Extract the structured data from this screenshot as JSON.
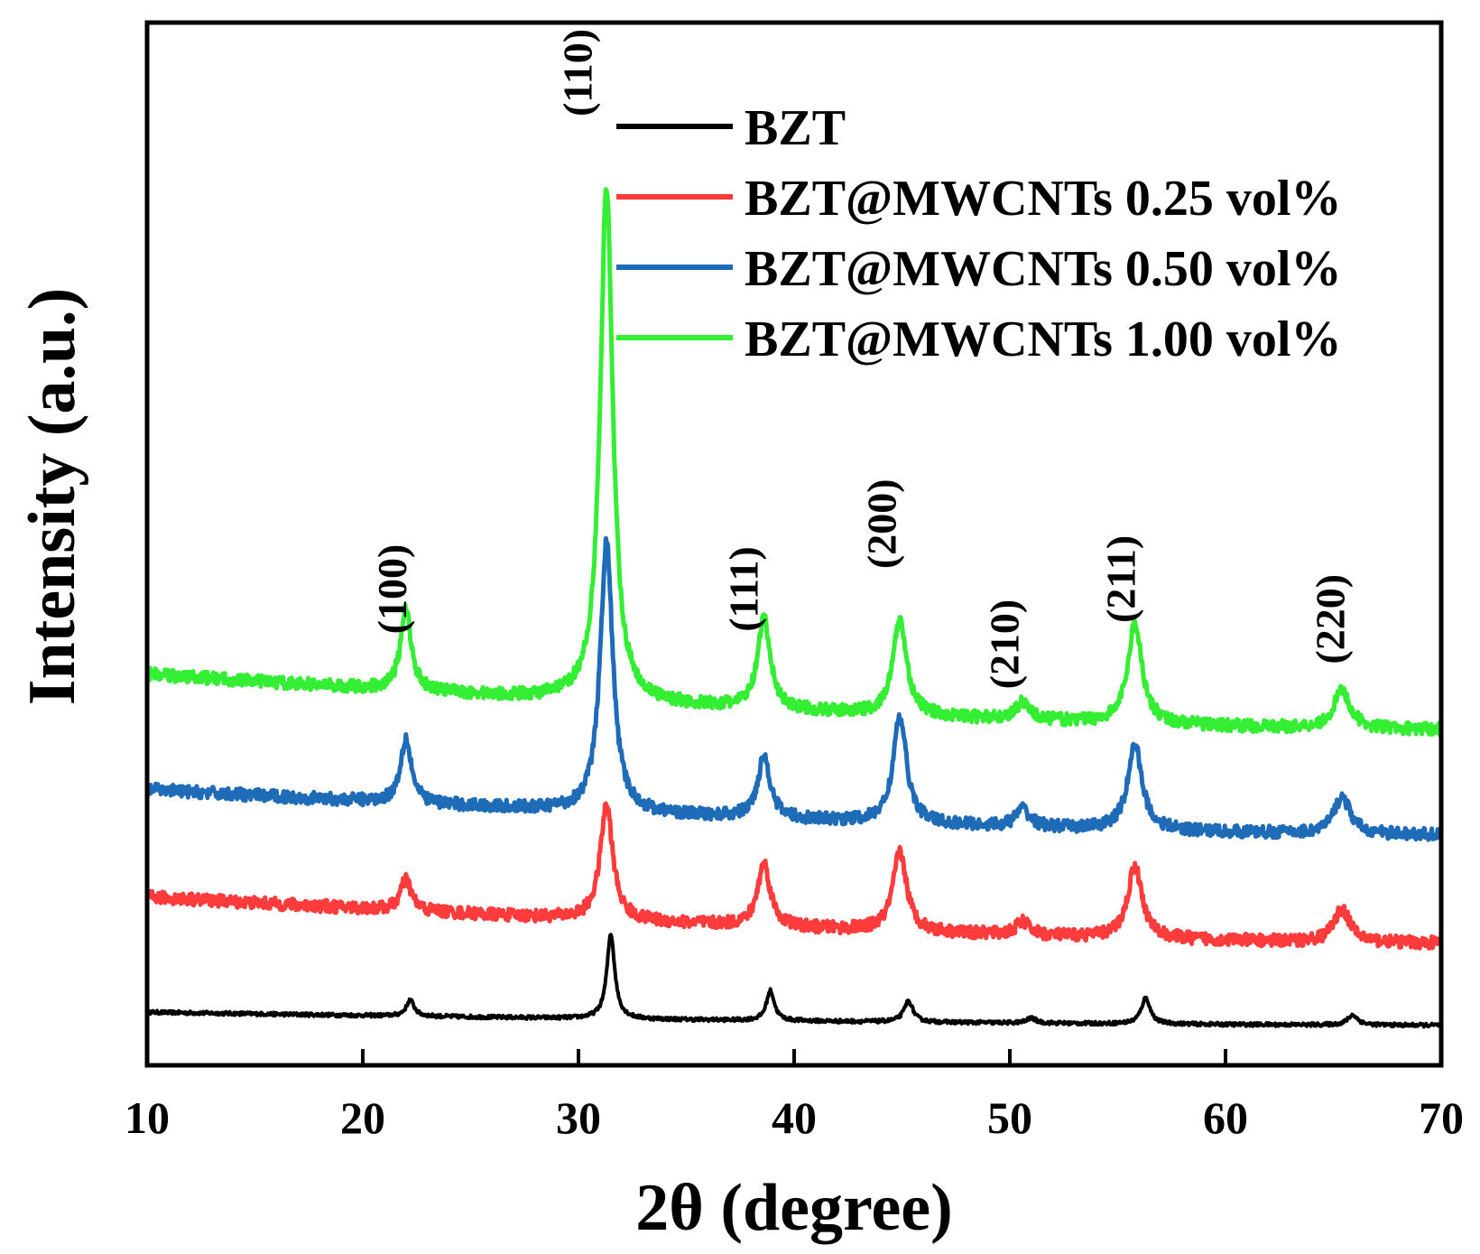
{
  "chart_data": {
    "type": "line",
    "title": "",
    "xlabel": "2θ (degree)",
    "ylabel": "Intensity (a.u.)",
    "xlim": [
      10,
      70
    ],
    "xticks": [
      10,
      20,
      30,
      40,
      50,
      60,
      70
    ],
    "y_ticks_shown": false,
    "grid": false,
    "legend_position": "top-right",
    "series": [
      {
        "name": "BZT",
        "color": "#000000",
        "baseline_start": 1.3,
        "baseline_end": 0.0,
        "peaks": [
          {
            "x": 22.2,
            "h": 1.6,
            "w": 0.22
          },
          {
            "x": 31.5,
            "h": 8.5,
            "w": 0.22
          },
          {
            "x": 38.9,
            "h": 3.0,
            "w": 0.22
          },
          {
            "x": 45.3,
            "h": 2.1,
            "w": 0.25
          },
          {
            "x": 51.0,
            "h": 0.5,
            "w": 0.25
          },
          {
            "x": 56.3,
            "h": 2.6,
            "w": 0.25
          },
          {
            "x": 65.9,
            "h": 1.0,
            "w": 0.28
          }
        ]
      },
      {
        "name": "BZT@MWCNTs 0.25 vol%",
        "color": "#ff3b3b",
        "baseline_start": 12.8,
        "baseline_end": 8.2,
        "peaks": [
          {
            "x": 22.0,
            "h": 3.1,
            "w": 0.3
          },
          {
            "x": 31.3,
            "h": 11.5,
            "w": 0.35
          },
          {
            "x": 38.6,
            "h": 6.3,
            "w": 0.35
          },
          {
            "x": 44.9,
            "h": 7.9,
            "w": 0.38
          },
          {
            "x": 50.6,
            "h": 1.3,
            "w": 0.38
          },
          {
            "x": 55.8,
            "h": 7.2,
            "w": 0.4
          },
          {
            "x": 65.4,
            "h": 3.3,
            "w": 0.45
          }
        ]
      },
      {
        "name": "BZT@MWCNTs 0.50 vol%",
        "color": "#1e6bb8",
        "baseline_start": 23.5,
        "baseline_end": 19.0,
        "peaks": [
          {
            "x": 22.0,
            "h": 6.5,
            "w": 0.3
          },
          {
            "x": 31.3,
            "h": 27.0,
            "w": 0.35
          },
          {
            "x": 38.6,
            "h": 6.2,
            "w": 0.35
          },
          {
            "x": 44.9,
            "h": 10.5,
            "w": 0.38
          },
          {
            "x": 50.6,
            "h": 1.8,
            "w": 0.38
          },
          {
            "x": 55.8,
            "h": 8.5,
            "w": 0.4
          },
          {
            "x": 65.4,
            "h": 3.7,
            "w": 0.45
          }
        ]
      },
      {
        "name": "BZT@MWCNTs 1.00 vol%",
        "color": "#33ee33",
        "baseline_start": 35.0,
        "baseline_end": 29.5,
        "peaks": [
          {
            "x": 22.0,
            "h": 8.0,
            "w": 0.3
          },
          {
            "x": 31.3,
            "h": 51.5,
            "w": 0.35
          },
          {
            "x": 38.6,
            "h": 9.0,
            "w": 0.35
          },
          {
            "x": 44.9,
            "h": 9.5,
            "w": 0.38
          },
          {
            "x": 50.6,
            "h": 1.8,
            "w": 0.38
          },
          {
            "x": 55.8,
            "h": 10.0,
            "w": 0.4
          },
          {
            "x": 65.4,
            "h": 3.8,
            "w": 0.45
          }
        ]
      }
    ],
    "ylim": [
      -4,
      100
    ],
    "peak_labels": [
      {
        "text": "(100)",
        "x": 22.0,
        "y": 43.5
      },
      {
        "text": "(110)",
        "x": 30.6,
        "y": 95.0
      },
      {
        "text": "(111)",
        "x": 38.3,
        "y": 43.5
      },
      {
        "text": "(200)",
        "x": 44.7,
        "y": 50.0
      },
      {
        "text": "(210)",
        "x": 50.4,
        "y": 38.0
      },
      {
        "text": "(211)",
        "x": 55.8,
        "y": 44.5
      },
      {
        "text": "(220)",
        "x": 65.5,
        "y": 40.5
      }
    ]
  }
}
